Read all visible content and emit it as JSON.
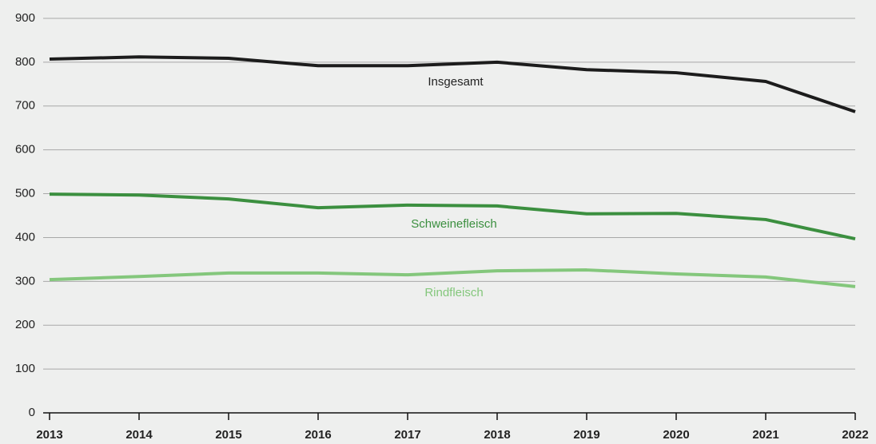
{
  "chart_data": {
    "type": "line",
    "x": [
      2013,
      2014,
      2015,
      2016,
      2017,
      2018,
      2019,
      2020,
      2021,
      2022
    ],
    "series": [
      {
        "name": "Insgesamt",
        "color": "#1c1c1c",
        "values": [
          807,
          812,
          809,
          792,
          792,
          800,
          783,
          776,
          756,
          687
        ]
      },
      {
        "name": "Schweinefleisch",
        "color": "#3b8f3f",
        "values": [
          499,
          497,
          488,
          468,
          474,
          472,
          454,
          455,
          441,
          397
        ]
      },
      {
        "name": "Rindfleisch",
        "color": "#84c77c",
        "values": [
          304,
          311,
          319,
          319,
          315,
          324,
          326,
          317,
          310,
          288
        ]
      }
    ],
    "xlim": [
      2013,
      2022
    ],
    "xticks": [
      2013,
      2014,
      2015,
      2016,
      2017,
      2018,
      2019,
      2020,
      2021,
      2022
    ],
    "ylim": [
      0,
      900
    ],
    "yticks": [
      0,
      100,
      200,
      300,
      400,
      500,
      600,
      700,
      800,
      900
    ],
    "grid": true
  }
}
